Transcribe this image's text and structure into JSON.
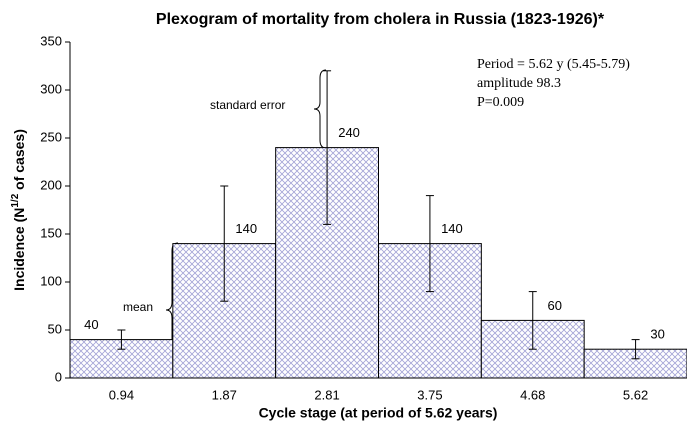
{
  "chart_data": {
    "type": "bar",
    "title": "Plexogram of mortality from cholera in Russia (1823-1926)*",
    "x_label": "Cycle stage (at period of 5.62 years)",
    "y_label": [
      "Incidence (N",
      "1/2",
      " of cases)"
    ],
    "categories": [
      "0.94",
      "1.87",
      "2.81",
      "3.75",
      "4.68",
      "5.62"
    ],
    "values": [
      40,
      140,
      240,
      140,
      60,
      30
    ],
    "errors": [
      10,
      60,
      80,
      50,
      30,
      10
    ],
    "color": "#a3a3d6",
    "ylim": [
      0,
      350
    ],
    "yticks": [
      0,
      50,
      100,
      150,
      200,
      250,
      300,
      350
    ],
    "annotations": [
      "Period = 5.62 y (5.45-5.79)",
      "amplitude 98.3",
      "P=0.009",
      "standard error",
      "mean"
    ]
  }
}
